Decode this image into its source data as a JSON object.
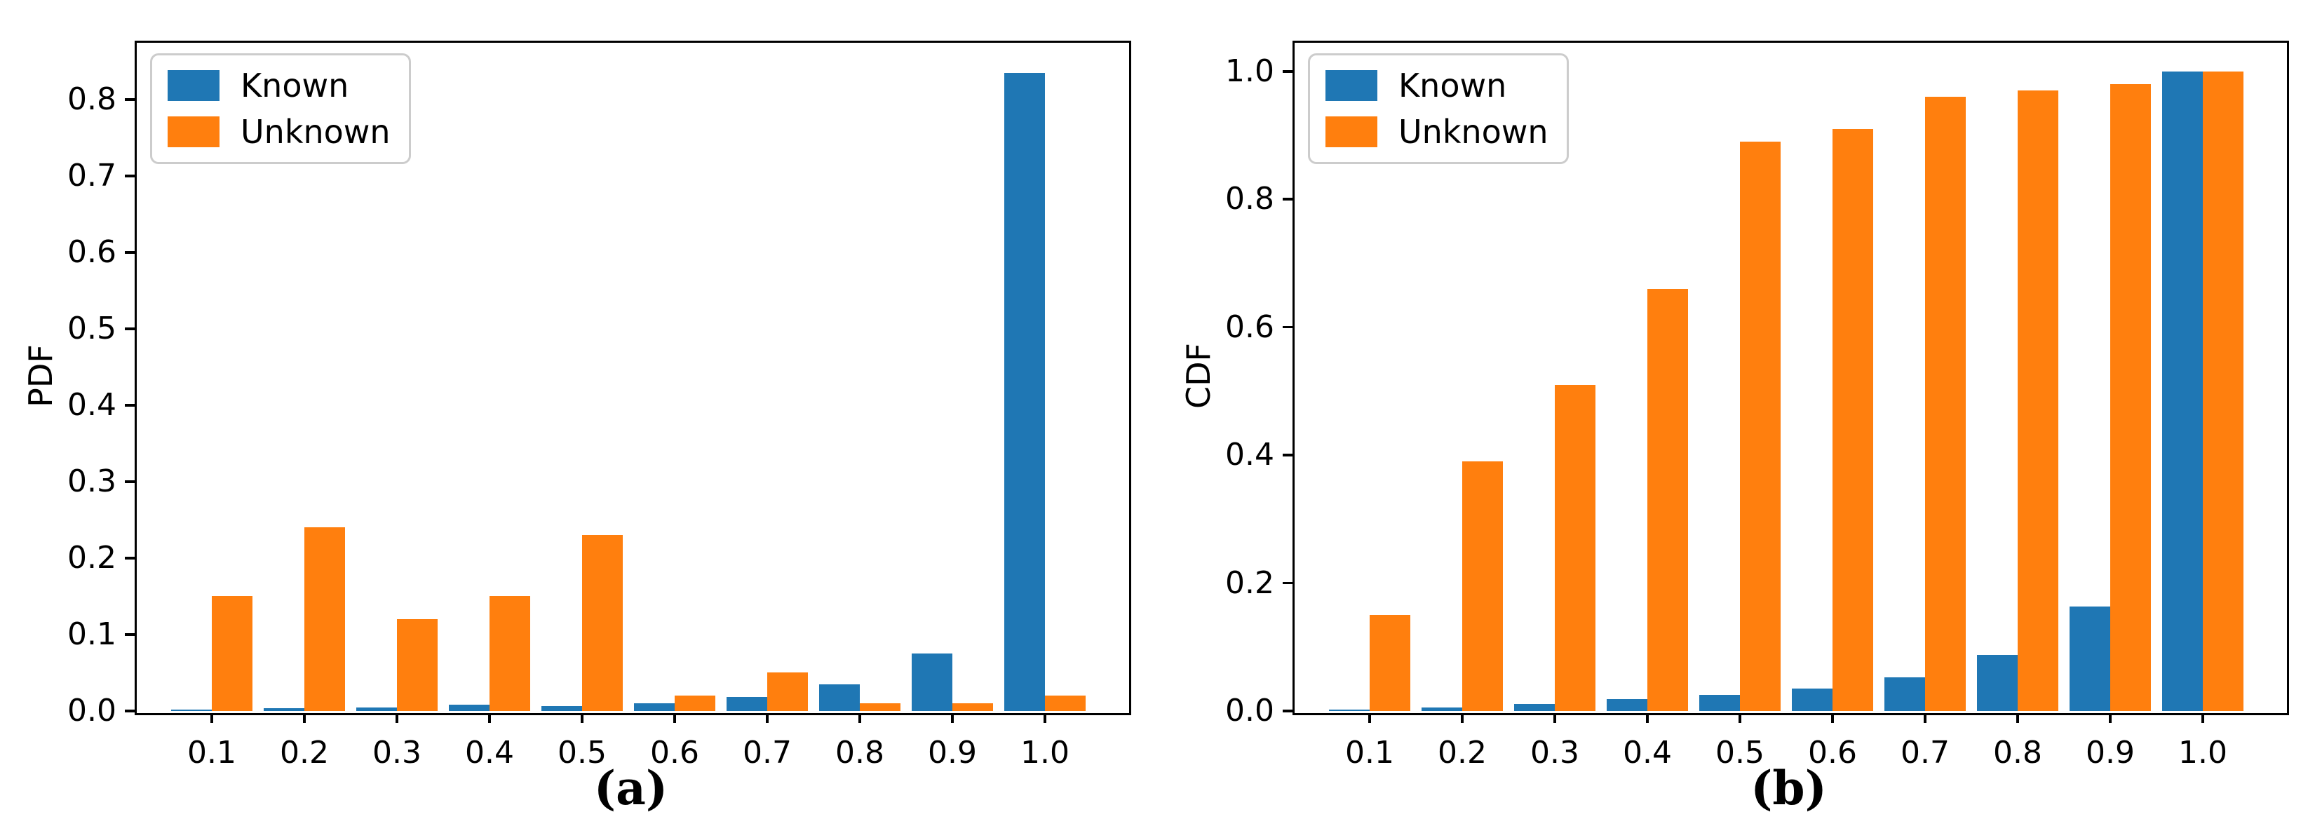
{
  "figure": {
    "background": "#ffffff",
    "text_color": "#000000",
    "axis_color": "#000000",
    "legend_border_color": "#cccccc"
  },
  "chart_data": [
    {
      "type": "bar",
      "panel": "a",
      "caption": "(a)",
      "title": "",
      "xlabel": "",
      "ylabel": "PDF",
      "categories": [
        "0.1",
        "0.2",
        "0.3",
        "0.4",
        "0.5",
        "0.6",
        "0.7",
        "0.8",
        "0.9",
        "1.0"
      ],
      "series": [
        {
          "name": "Known",
          "color": "#1f77b4",
          "values": [
            0.002,
            0.004,
            0.005,
            0.008,
            0.006,
            0.01,
            0.018,
            0.035,
            0.075,
            0.835
          ]
        },
        {
          "name": "Unknown",
          "color": "#ff7f0e",
          "values": [
            0.15,
            0.24,
            0.12,
            0.15,
            0.23,
            0.02,
            0.05,
            0.01,
            0.01,
            0.02
          ]
        }
      ],
      "ylim": [
        0,
        0.877
      ],
      "ytick_values": [
        0.0,
        0.1,
        0.2,
        0.3,
        0.4,
        0.5,
        0.6,
        0.7,
        0.8
      ],
      "ytick_labels": [
        "0.0",
        "0.1",
        "0.2",
        "0.3",
        "0.4",
        "0.5",
        "0.6",
        "0.7",
        "0.8"
      ],
      "grid": false,
      "legend_position": "upper left"
    },
    {
      "type": "bar",
      "panel": "b",
      "caption": "(b)",
      "title": "",
      "xlabel": "",
      "ylabel": "CDF",
      "categories": [
        "0.1",
        "0.2",
        "0.3",
        "0.4",
        "0.5",
        "0.6",
        "0.7",
        "0.8",
        "0.9",
        "1.0"
      ],
      "series": [
        {
          "name": "Known",
          "color": "#1f77b4",
          "values": [
            0.002,
            0.006,
            0.011,
            0.019,
            0.025,
            0.035,
            0.053,
            0.088,
            0.163,
            1.0
          ]
        },
        {
          "name": "Unknown",
          "color": "#ff7f0e",
          "values": [
            0.15,
            0.39,
            0.51,
            0.66,
            0.89,
            0.91,
            0.96,
            0.97,
            0.98,
            1.0
          ]
        }
      ],
      "ylim": [
        0,
        1.048
      ],
      "ytick_values": [
        0.0,
        0.2,
        0.4,
        0.6,
        0.8,
        1.0
      ],
      "ytick_labels": [
        "0.0",
        "0.2",
        "0.4",
        "0.6",
        "0.8",
        "1.0"
      ],
      "grid": false,
      "legend_position": "upper left"
    }
  ]
}
